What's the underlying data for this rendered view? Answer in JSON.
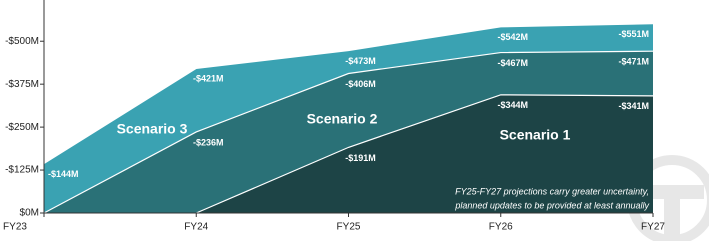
{
  "chart_data": {
    "type": "area",
    "categories": [
      "FY23",
      "FY24",
      "FY25",
      "FY26",
      "FY27"
    ],
    "series": [
      {
        "name": "Scenario 1",
        "color": "#1d4446",
        "values": [
          null,
          0,
          -191,
          -344,
          -341
        ],
        "value_labels": [
          null,
          null,
          "-$191M",
          "-$344M",
          "-$341M"
        ]
      },
      {
        "name": "Scenario 2",
        "color": "#2a7177",
        "values": [
          0,
          -236,
          -406,
          -467,
          -471
        ],
        "value_labels": [
          null,
          "-$236M",
          "-$406M",
          "-$467M",
          "-$471M"
        ]
      },
      {
        "name": "Scenario 3",
        "color": "#3aa2b2",
        "values": [
          -144,
          -421,
          -473,
          -542,
          -551
        ],
        "value_labels": [
          "-$144M",
          "-$421M",
          "-$473M",
          "-$542M",
          "-$551M"
        ]
      }
    ],
    "ylim": [
      0,
      -620
    ],
    "yticks": [
      {
        "value": 0,
        "label": "$0M"
      },
      {
        "value": -125,
        "label": "-$125M"
      },
      {
        "value": -250,
        "label": "-$250M"
      },
      {
        "value": -375,
        "label": "-$375M"
      },
      {
        "value": -500,
        "label": "-$500M"
      }
    ],
    "annotations": [
      "FY25-FY27 projections carry greater uncertainty,",
      "planned updates to be provided at least annually"
    ]
  }
}
